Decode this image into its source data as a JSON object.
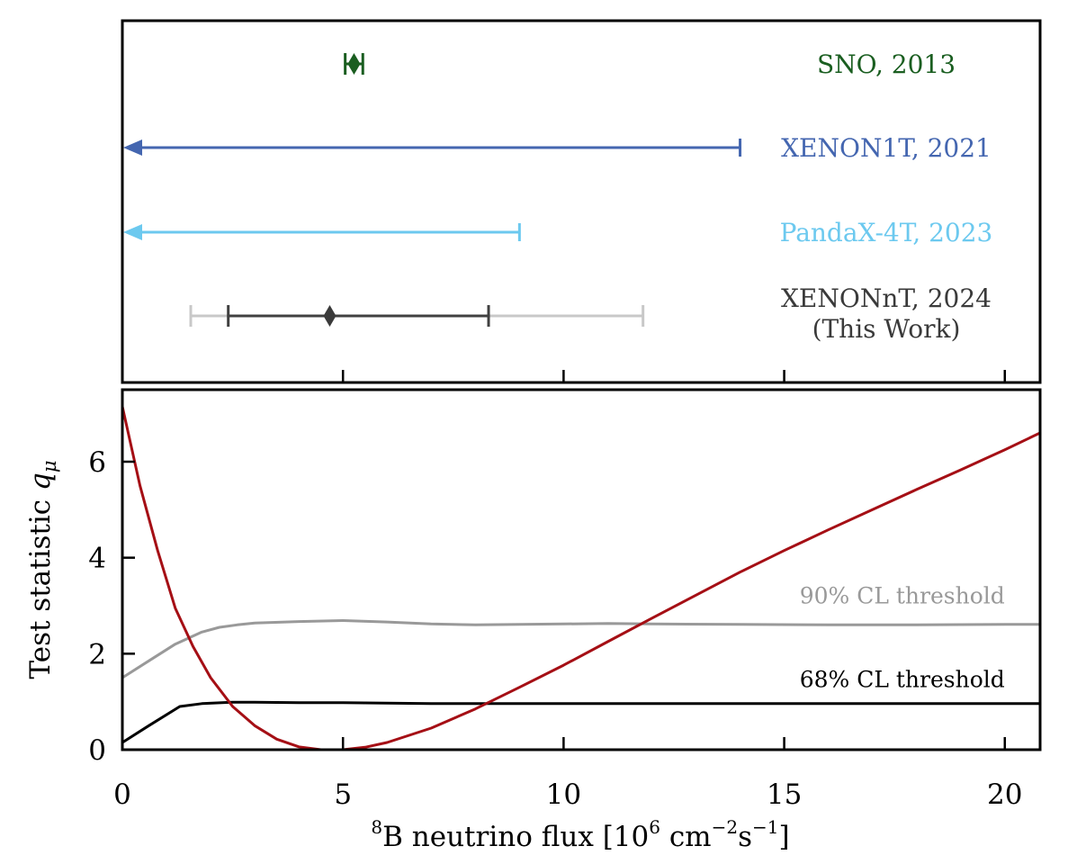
{
  "chart_data": [
    {
      "type": "errorbar",
      "panel": "top",
      "xlim": [
        0,
        20.8
      ],
      "grid": false,
      "entries": [
        {
          "label": "SNO, 2013",
          "label_lines": [
            "SNO, 2013"
          ],
          "color": "#1a5e20",
          "central": 5.25,
          "intervals": [
            [
              5.05,
              5.45
            ]
          ],
          "upper_limit": null
        },
        {
          "label": "XENON1T, 2021",
          "label_lines": [
            "XENON1T, 2021"
          ],
          "color": "#4466b0",
          "central": null,
          "intervals": [],
          "upper_limit": 14.0
        },
        {
          "label": "PandaX-4T, 2023",
          "label_lines": [
            "PandaX-4T, 2023"
          ],
          "color": "#6cc9ef",
          "central": null,
          "intervals": [],
          "upper_limit": 9.0
        },
        {
          "label": "XENONnT, 2024 (This Work)",
          "label_lines": [
            "XENONnT, 2024",
            "(This Work)"
          ],
          "color": "#3a3a3a",
          "central": 4.7,
          "intervals": [
            [
              1.55,
              11.8
            ],
            [
              2.4,
              8.3
            ]
          ],
          "interval_colors": [
            "#c8c8c8",
            "#404040"
          ],
          "upper_limit": null
        }
      ]
    },
    {
      "type": "line",
      "panel": "bottom",
      "xlabel_parts": {
        "sup1": "8",
        "main1": "B neutrino flux [10",
        "sup2": "6",
        "main2": " cm",
        "sup3": "−2",
        "main3": "s",
        "sup4": "−1",
        "main4": "]"
      },
      "ylabel_parts": {
        "main": "Test statistic ",
        "sym": "q",
        "sub": "μ"
      },
      "xlim": [
        0,
        20.8
      ],
      "ylim": [
        0,
        7.5
      ],
      "xticks": [
        0,
        5,
        10,
        15,
        20
      ],
      "yticks": [
        0,
        2,
        4,
        6
      ],
      "grid": false,
      "series": [
        {
          "color": "#a50f15",
          "x": [
            0,
            0.4,
            0.8,
            1.2,
            1.6,
            2.0,
            2.5,
            3.0,
            3.5,
            4.0,
            4.5,
            5.0,
            5.5,
            6.0,
            7.0,
            8.0,
            9.0,
            10.0,
            11.0,
            12.0,
            13.0,
            14.0,
            15.0,
            16.0,
            17.0,
            18.0,
            19.0,
            20.0,
            20.8
          ],
          "y": [
            7.15,
            5.5,
            4.15,
            2.95,
            2.15,
            1.5,
            0.9,
            0.5,
            0.22,
            0.06,
            0.0,
            0.0,
            0.05,
            0.15,
            0.45,
            0.85,
            1.3,
            1.76,
            2.25,
            2.74,
            3.22,
            3.7,
            4.15,
            4.58,
            5.0,
            5.42,
            5.83,
            6.25,
            6.6
          ]
        },
        {
          "name": "90% CL threshold",
          "color": "#999999",
          "x": [
            0,
            0.6,
            1.2,
            1.8,
            2.2,
            2.6,
            3.0,
            4.0,
            5.0,
            6.0,
            7.0,
            8.0,
            9.0,
            10.0,
            11.0,
            12.0,
            14.0,
            16.0,
            18.0,
            20.0,
            20.8
          ],
          "y": [
            1.5,
            1.85,
            2.2,
            2.45,
            2.55,
            2.6,
            2.64,
            2.67,
            2.69,
            2.66,
            2.62,
            2.6,
            2.61,
            2.62,
            2.63,
            2.62,
            2.61,
            2.6,
            2.6,
            2.61,
            2.61
          ]
        },
        {
          "name": "68% CL threshold",
          "color": "#000000",
          "x": [
            0,
            0.6,
            1.3,
            1.8,
            2.5,
            3.0,
            4.0,
            5.0,
            6.0,
            7.0,
            8.0,
            10.0,
            12.0,
            15.0,
            18.0,
            20.8
          ],
          "y": [
            0.15,
            0.5,
            0.9,
            0.96,
            0.99,
            0.99,
            0.98,
            0.98,
            0.97,
            0.96,
            0.96,
            0.96,
            0.96,
            0.96,
            0.96,
            0.96
          ]
        }
      ],
      "annotations": [
        {
          "text": "90% CL threshold",
          "x": 20.0,
          "y": 3.05,
          "color": "#999999"
        },
        {
          "text": "68% CL threshold",
          "x": 20.0,
          "y": 1.3,
          "color": "#000000"
        }
      ]
    }
  ]
}
